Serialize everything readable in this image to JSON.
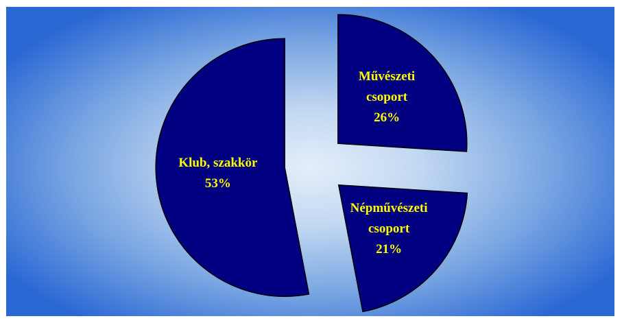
{
  "chart_data": {
    "type": "pie",
    "categories": [
      "Művészeti csoport",
      "Népművészeti csoport",
      "Klub, szakkör"
    ],
    "values": [
      26,
      21,
      53
    ],
    "value_labels": [
      "26%",
      "21%",
      "53%"
    ],
    "colors": [
      "#000080",
      "#000080",
      "#000080"
    ],
    "label_color": "#ffff00"
  }
}
